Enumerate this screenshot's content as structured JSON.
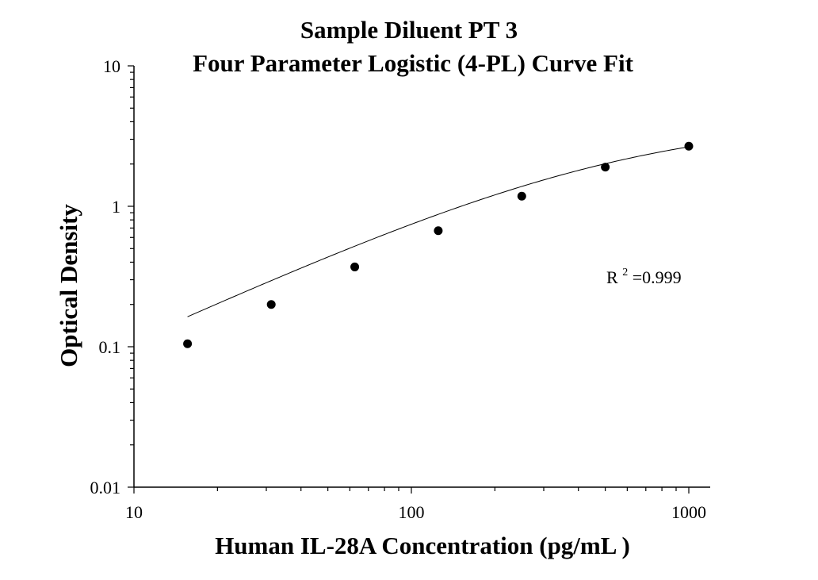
{
  "chart_data": {
    "type": "scatter",
    "title": "Sample Diluent PT 3",
    "subtitle": "Four Parameter Logistic (4-PL) Curve Fit",
    "xlabel": "Human IL-28A Concentration (pg/mL )",
    "ylabel": "Optical Density",
    "x_scale": "log",
    "y_scale": "log",
    "xlim": [
      10,
      1200
    ],
    "ylim": [
      0.01,
      10
    ],
    "x_ticks": [
      "10",
      "100",
      "1000"
    ],
    "y_ticks": [
      "0.01",
      "0.1",
      "1",
      "10"
    ],
    "grid": false,
    "legend": "none",
    "series": [
      {
        "x": [
          15.6,
          31.25,
          62.5,
          125,
          250,
          500,
          1000
        ],
        "y": [
          0.105,
          0.2,
          0.37,
          0.67,
          1.18,
          1.9,
          2.68
        ]
      }
    ],
    "fit": {
      "model": "4-PL",
      "min": 0.0,
      "max": 4.2,
      "ec50": 550,
      "hill": 0.9
    },
    "annotation": {
      "base": "R",
      "sup": "2",
      "rest": "=0.999"
    },
    "colors": {
      "marker": "#000000",
      "line": "#000000",
      "axis": "#000000"
    }
  }
}
